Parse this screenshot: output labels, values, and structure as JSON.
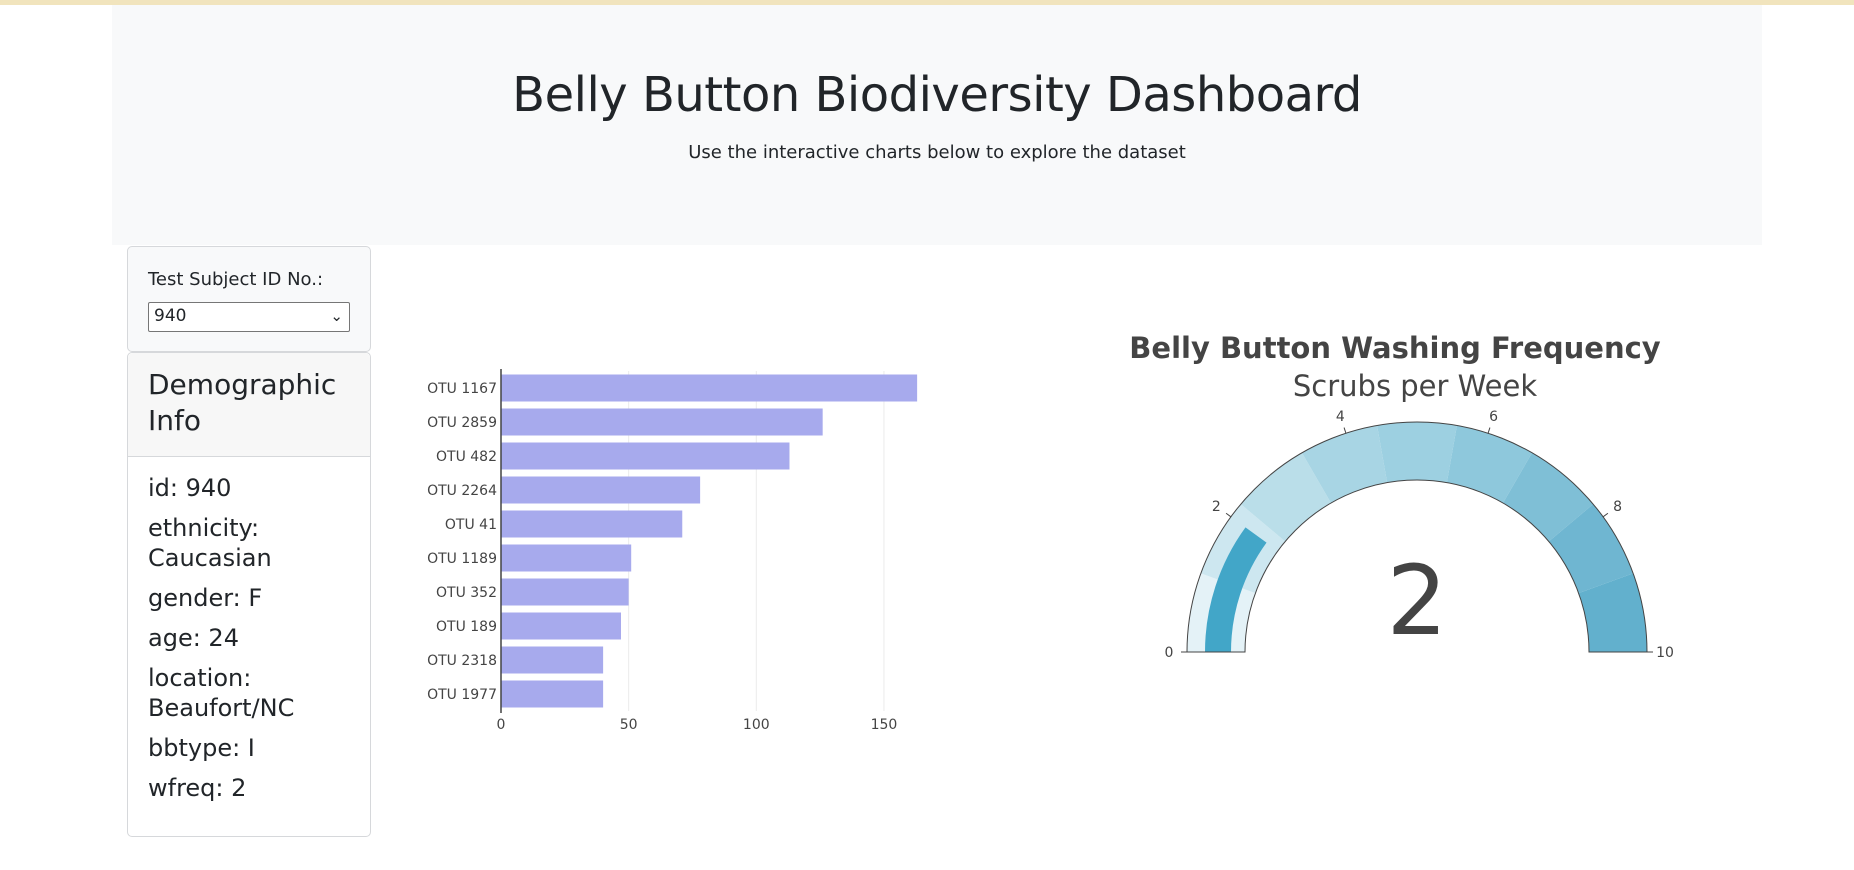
{
  "header": {
    "title": "Belly Button Biodiversity Dashboard",
    "subtitle": "Use the interactive charts below to explore the dataset"
  },
  "selector": {
    "label": "Test Subject ID No.:",
    "selected": "940"
  },
  "demographics": {
    "title": "Demographic Info",
    "items": [
      "id: 940",
      "ethnicity: Caucasian",
      "gender: F",
      "age: 24",
      "location: Beaufort/NC",
      "bbtype: I",
      "wfreq: 2"
    ]
  },
  "chart_data": [
    {
      "type": "bar",
      "orientation": "horizontal",
      "categories": [
        "OTU 1167",
        "OTU 2859",
        "OTU 482",
        "OTU 2264",
        "OTU 41",
        "OTU 1189",
        "OTU 352",
        "OTU 189",
        "OTU 2318",
        "OTU 1977"
      ],
      "values": [
        163,
        126,
        113,
        78,
        71,
        51,
        50,
        47,
        40,
        40
      ],
      "xlim": [
        0,
        170
      ],
      "xticks": [
        0,
        50,
        100,
        150
      ],
      "grid": true,
      "bar_color": "#a7aaed"
    },
    {
      "type": "gauge",
      "title": "Belly Button Washing Frequency",
      "subtitle": "Scrubs per Week",
      "value": 2,
      "range": [
        0,
        10
      ],
      "ticks": [
        0,
        2,
        4,
        6,
        8,
        10
      ],
      "bar_color": "#42a6c8",
      "step_colors": [
        "#e4f2f7",
        "#cde7f0",
        "#badee9",
        "#a8d5e4",
        "#9dd0e1",
        "#8ec8dc",
        "#7fbfd6",
        "#6fb6d1",
        "#62b0cd"
      ]
    }
  ]
}
